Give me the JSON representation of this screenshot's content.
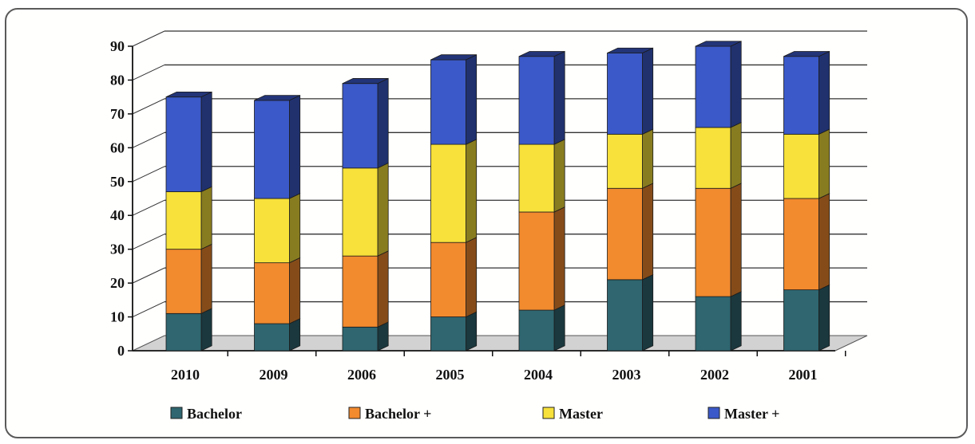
{
  "chart_data": {
    "type": "bar",
    "stacked": true,
    "three_d": true,
    "categories": [
      "2010",
      "2009",
      "2006",
      "2005",
      "2004",
      "2003",
      "2002",
      "2001"
    ],
    "series": [
      {
        "name": "Bachelor",
        "color": "#2f6670",
        "values": [
          11,
          8,
          7,
          10,
          12,
          21,
          16,
          18
        ]
      },
      {
        "name": "Bachelor +",
        "color": "#f28a2e",
        "values": [
          19,
          18,
          21,
          22,
          29,
          27,
          32,
          27
        ]
      },
      {
        "name": "Master",
        "color": "#f7e13a",
        "values": [
          17,
          19,
          26,
          29,
          20,
          16,
          18,
          19
        ]
      },
      {
        "name": "Master +",
        "color": "#3b59c8",
        "values": [
          28,
          29,
          25,
          25,
          26,
          24,
          24,
          23
        ]
      }
    ],
    "ylim": [
      0,
      90
    ],
    "yticks": [
      0,
      10,
      20,
      30,
      40,
      50,
      60,
      70,
      80,
      90
    ],
    "grid": true,
    "legend": "bottom",
    "title": "",
    "xlabel": "",
    "ylabel": ""
  }
}
